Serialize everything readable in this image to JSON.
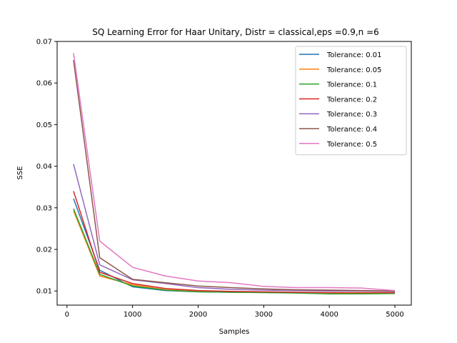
{
  "chart_data": {
    "type": "line",
    "title": "SQ Learning Error for Haar Unitary, Distr = classical,eps =0.9,n =6",
    "xlabel": "Samples",
    "ylabel": "SSE",
    "xlim": [
      -150,
      5250
    ],
    "ylim": [
      0.0066,
      0.07
    ],
    "xticks": [
      0,
      1000,
      2000,
      3000,
      4000,
      5000
    ],
    "yticks": [
      0.01,
      0.02,
      0.03,
      0.04,
      0.05,
      0.06,
      0.07
    ],
    "ytick_labels": [
      "0.01",
      "0.02",
      "0.03",
      "0.04",
      "0.05",
      "0.06",
      "0.07"
    ],
    "legend_position": "top-right",
    "x": [
      100,
      500,
      1000,
      1500,
      2000,
      2500,
      3000,
      3500,
      4000,
      4500,
      5000
    ],
    "series": [
      {
        "name": "Tolerance: 0.01",
        "color": "#1f77b4",
        "values": [
          0.0322,
          0.015,
          0.011,
          0.0101,
          0.0098,
          0.0097,
          0.0097,
          0.0096,
          0.0095,
          0.0095,
          0.0095
        ]
      },
      {
        "name": "Tolerance: 0.05",
        "color": "#ff7f0e",
        "values": [
          0.0293,
          0.0136,
          0.0115,
          0.0103,
          0.0099,
          0.0098,
          0.0097,
          0.0096,
          0.0095,
          0.0095,
          0.0095
        ]
      },
      {
        "name": "Tolerance: 0.1",
        "color": "#2ca02c",
        "values": [
          0.0298,
          0.014,
          0.0112,
          0.0102,
          0.0098,
          0.0097,
          0.0096,
          0.0095,
          0.0093,
          0.0093,
          0.0094
        ]
      },
      {
        "name": "Tolerance: 0.2",
        "color": "#d62728",
        "values": [
          0.034,
          0.0145,
          0.0118,
          0.0106,
          0.0101,
          0.0099,
          0.0098,
          0.0097,
          0.0096,
          0.0096,
          0.0096
        ]
      },
      {
        "name": "Tolerance: 0.3",
        "color": "#9467bd",
        "values": [
          0.0405,
          0.0163,
          0.0127,
          0.0118,
          0.0108,
          0.0104,
          0.0102,
          0.0101,
          0.01,
          0.01,
          0.0099
        ]
      },
      {
        "name": "Tolerance: 0.4",
        "color": "#8c564b",
        "values": [
          0.0655,
          0.018,
          0.0128,
          0.012,
          0.0112,
          0.0108,
          0.0105,
          0.0103,
          0.0102,
          0.0101,
          0.01
        ]
      },
      {
        "name": "Tolerance: 0.5",
        "color": "#e377c2",
        "values": [
          0.0672,
          0.022,
          0.0157,
          0.0136,
          0.0124,
          0.012,
          0.0111,
          0.0108,
          0.0108,
          0.0107,
          0.0101
        ]
      }
    ]
  }
}
